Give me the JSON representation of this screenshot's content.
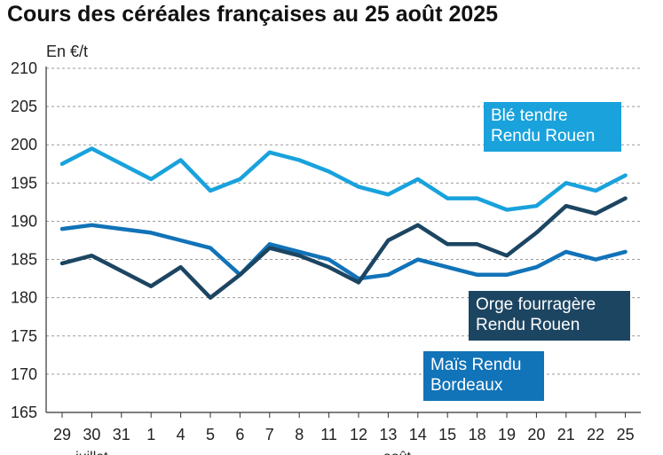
{
  "title": "Cours des céréales françaises au 25 août 2025",
  "unit_label": "En €/t",
  "chart_data": {
    "type": "line",
    "title": "Cours des céréales françaises au 25 août 2025",
    "ylabel": "En €/t",
    "ylim": [
      165,
      210
    ],
    "yticks": [
      165,
      170,
      175,
      180,
      185,
      190,
      195,
      200,
      205,
      210
    ],
    "grid": true,
    "categories": [
      "29",
      "30",
      "31",
      "1",
      "4",
      "5",
      "6",
      "7",
      "8",
      "11",
      "12",
      "13",
      "14",
      "15",
      "18",
      "19",
      "20",
      "21",
      "22",
      "25"
    ],
    "month_labels": [
      {
        "text": "juillet",
        "at": "30"
      },
      {
        "text": "août",
        "at": "13"
      }
    ],
    "series": [
      {
        "name": "Blé tendre Rendu Rouen",
        "color": "#19a2dc",
        "values": [
          197.5,
          199.5,
          197.5,
          195.5,
          198,
          194,
          195.5,
          199,
          198,
          196.5,
          194.5,
          193.5,
          195.5,
          193,
          193,
          191.5,
          192,
          195,
          194,
          196
        ]
      },
      {
        "name": "Orge fourragère Rendu Rouen",
        "color": "#1c4562",
        "values": [
          184.5,
          185.5,
          183.5,
          181.5,
          184,
          180,
          183,
          186.5,
          185.5,
          184,
          182,
          187.5,
          189.5,
          187,
          187,
          185.5,
          188.5,
          192,
          191,
          193
        ]
      },
      {
        "name": "Maïs Rendu Bordeaux",
        "color": "#1173b8",
        "values": [
          189,
          189.5,
          189,
          188.5,
          187.5,
          186.5,
          183,
          187,
          186,
          185,
          182.5,
          183,
          185,
          184,
          183,
          183,
          184,
          186,
          185,
          186
        ]
      }
    ]
  }
}
